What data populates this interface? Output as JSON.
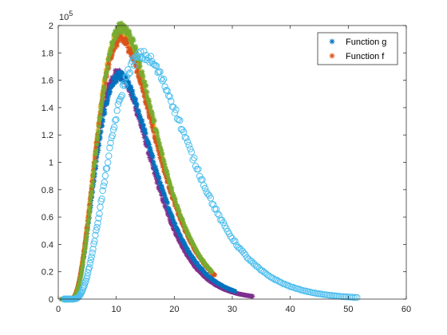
{
  "chart_data": {
    "type": "scatter",
    "title": "",
    "xlabel": "",
    "ylabel": "",
    "xlim": [
      0,
      60
    ],
    "ylim": [
      0,
      200000
    ],
    "x_ticks": [
      "0",
      "10",
      "20",
      "30",
      "40",
      "50",
      "60"
    ],
    "y_ticks": [
      "0",
      "0.2",
      "0.4",
      "0.6",
      "0.8",
      "1",
      "1.2",
      "1.4",
      "1.6",
      "1.8",
      "2"
    ],
    "x_tick_values": [
      0,
      10,
      20,
      30,
      40,
      50,
      60
    ],
    "y_tick_values": [
      0,
      20000,
      40000,
      60000,
      80000,
      100000,
      120000,
      140000,
      160000,
      180000,
      200000
    ],
    "y_exponent_base": "10",
    "y_exponent_power": "5",
    "grid": false,
    "legend_position": "top-right",
    "legend": [
      {
        "label": "Function g",
        "marker": "asterisk",
        "color": "#0072BD"
      },
      {
        "label": "Function f",
        "marker": "asterisk",
        "color": "#D95319"
      }
    ],
    "series": [
      {
        "marker": "asterisk",
        "color": "#7E2F8E",
        "start": 2,
        "peak_x": 10.3,
        "peak_y": 165000,
        "shape": 3.0,
        "end_x": 33.5
      },
      {
        "marker": "asterisk",
        "color": "#0072BD",
        "start": 2,
        "peak_x": 10.6,
        "peak_y": 163000,
        "shape": 3.0,
        "end_x": 30.5
      },
      {
        "marker": "asterisk",
        "color": "#EDB120",
        "start": 2,
        "peak_x": 10.8,
        "peak_y": 195000,
        "shape": 3.0,
        "end_x": 26.0
      },
      {
        "marker": "asterisk",
        "color": "#D95319",
        "start": 2,
        "peak_x": 10.8,
        "peak_y": 190000,
        "shape": 3.0,
        "end_x": 27.0
      },
      {
        "marker": "asterisk",
        "color": "#77AC30",
        "start": 2,
        "peak_x": 11.0,
        "peak_y": 199000,
        "shape": 3.2,
        "end_x": 26.5
      },
      {
        "marker": "circle",
        "color": "#4DBEEE",
        "start": 2.5,
        "peak_x": 14.5,
        "peak_y": 178000,
        "shape": 3.0,
        "end_x": 51.5
      }
    ]
  }
}
